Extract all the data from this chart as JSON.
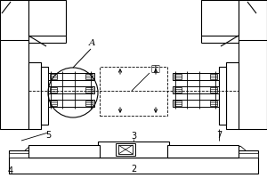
{
  "bg_color": "#ffffff",
  "line_color": "#000000",
  "label_A": "A",
  "label_3": "3",
  "label_2": "2",
  "label_4": "4",
  "label_5": "5",
  "label_7": "7",
  "label_tuo_xie": "拖鞋"
}
